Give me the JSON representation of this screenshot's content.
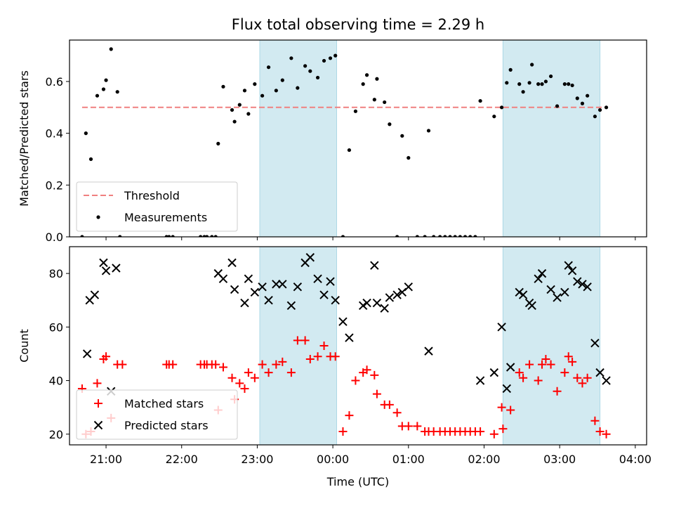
{
  "figure_title": "Flux total observing time = 2.29 h",
  "chart_data": [
    {
      "type": "scatter",
      "panel": "top",
      "ylabel": "Matched/Predicted stars",
      "xlabel": "",
      "xlim": [
        "20:31",
        "04:09"
      ],
      "ylim": [
        0,
        0.76
      ],
      "y_ticks": [
        0.0,
        0.2,
        0.4,
        0.6
      ],
      "y_tick_labels": [
        "0.0",
        "0.2",
        "0.4",
        "0.6"
      ],
      "shaded_intervals": [
        [
          "23:02",
          "00:03"
        ],
        [
          "02:15",
          "03:32"
        ]
      ],
      "shade_color": "#add8e6",
      "threshold": {
        "name": "Threshold",
        "value": 0.5,
        "color": "#f08080"
      },
      "legend": {
        "position": "lower-left",
        "entries": [
          "Threshold",
          "Measurements"
        ]
      },
      "series": [
        {
          "name": "Measurements",
          "marker": "dot",
          "color": "#000000",
          "points": [
            [
              "20:41",
              0.0
            ],
            [
              "20:44",
              0.4
            ],
            [
              "20:48",
              0.3
            ],
            [
              "20:53",
              0.545
            ],
            [
              "20:58",
              0.57
            ],
            [
              "21:00",
              0.605
            ],
            [
              "21:04",
              0.725
            ],
            [
              "21:09",
              0.56
            ],
            [
              "21:11",
              0.0
            ],
            [
              "21:48",
              0.0
            ],
            [
              "21:50",
              0.0
            ],
            [
              "21:53",
              0.0
            ],
            [
              "22:15",
              0.0
            ],
            [
              "22:18",
              0.0
            ],
            [
              "22:20",
              0.0
            ],
            [
              "22:24",
              0.0
            ],
            [
              "22:27",
              0.0
            ],
            [
              "22:29",
              0.36
            ],
            [
              "22:33",
              0.58
            ],
            [
              "22:40",
              0.49
            ],
            [
              "22:42",
              0.445
            ],
            [
              "22:46",
              0.51
            ],
            [
              "22:50",
              0.565
            ],
            [
              "22:53",
              0.475
            ],
            [
              "22:58",
              0.59
            ],
            [
              "23:04",
              0.545
            ],
            [
              "23:09",
              0.655
            ],
            [
              "23:15",
              0.565
            ],
            [
              "23:20",
              0.605
            ],
            [
              "23:27",
              0.69
            ],
            [
              "23:32",
              0.575
            ],
            [
              "23:38",
              0.66
            ],
            [
              "23:42",
              0.64
            ],
            [
              "23:48",
              0.615
            ],
            [
              "23:53",
              0.68
            ],
            [
              "23:58",
              0.69
            ],
            [
              "00:02",
              0.7
            ],
            [
              "00:08",
              0.0
            ],
            [
              "00:13",
              0.335
            ],
            [
              "00:18",
              0.485
            ],
            [
              "00:24",
              0.59
            ],
            [
              "00:27",
              0.625
            ],
            [
              "00:33",
              0.53
            ],
            [
              "00:35",
              0.61
            ],
            [
              "00:41",
              0.52
            ],
            [
              "00:45",
              0.435
            ],
            [
              "00:51",
              0.0
            ],
            [
              "00:55",
              0.39
            ],
            [
              "01:00",
              0.305
            ],
            [
              "01:07",
              0.0
            ],
            [
              "01:13",
              0.0
            ],
            [
              "01:16",
              0.41
            ],
            [
              "01:20",
              0.0
            ],
            [
              "01:25",
              0.0
            ],
            [
              "01:29",
              0.0
            ],
            [
              "01:33",
              0.0
            ],
            [
              "01:37",
              0.0
            ],
            [
              "01:41",
              0.0
            ],
            [
              "01:45",
              0.0
            ],
            [
              "01:49",
              0.0
            ],
            [
              "01:53",
              0.0
            ],
            [
              "01:57",
              0.525
            ],
            [
              "02:08",
              0.465
            ],
            [
              "02:14",
              0.5
            ],
            [
              "02:18",
              0.595
            ],
            [
              "02:21",
              0.645
            ],
            [
              "02:28",
              0.59
            ],
            [
              "02:31",
              0.56
            ],
            [
              "02:36",
              0.595
            ],
            [
              "02:38",
              0.665
            ],
            [
              "02:43",
              0.59
            ],
            [
              "02:46",
              0.59
            ],
            [
              "02:49",
              0.6
            ],
            [
              "02:53",
              0.62
            ],
            [
              "02:58",
              0.505
            ],
            [
              "03:04",
              0.59
            ],
            [
              "03:07",
              0.59
            ],
            [
              "03:10",
              0.585
            ],
            [
              "03:14",
              0.535
            ],
            [
              "03:18",
              0.515
            ],
            [
              "03:22",
              0.545
            ],
            [
              "03:28",
              0.465
            ],
            [
              "03:32",
              0.49
            ],
            [
              "03:37",
              0.5
            ]
          ]
        }
      ]
    },
    {
      "type": "scatter",
      "panel": "bottom",
      "ylabel": "Count",
      "xlabel": "Time (UTC)",
      "xlim": [
        "20:31",
        "04:09"
      ],
      "ylim": [
        16,
        90
      ],
      "x_ticks": [
        "21:00",
        "22:00",
        "23:00",
        "00:00",
        "01:00",
        "02:00",
        "03:00",
        "04:00"
      ],
      "y_ticks": [
        20,
        40,
        60,
        80
      ],
      "y_tick_labels": [
        "20",
        "40",
        "60",
        "80"
      ],
      "shaded_intervals": [
        [
          "23:02",
          "00:03"
        ],
        [
          "02:15",
          "03:32"
        ]
      ],
      "shade_color": "#add8e6",
      "legend": {
        "position": "lower-left",
        "entries": [
          "Matched stars",
          "Predicted stars"
        ]
      },
      "series": [
        {
          "name": "Matched stars",
          "marker": "plus",
          "color": "#ff0000",
          "points": [
            [
              "20:41",
              37
            ],
            [
              "20:44",
              20
            ],
            [
              "20:48",
              21
            ],
            [
              "20:53",
              39
            ],
            [
              "20:58",
              48
            ],
            [
              "21:00",
              49
            ],
            [
              "21:04",
              26
            ],
            [
              "21:09",
              46
            ],
            [
              "21:13",
              46
            ],
            [
              "21:48",
              46
            ],
            [
              "21:50",
              46
            ],
            [
              "21:53",
              46
            ],
            [
              "22:15",
              46
            ],
            [
              "22:18",
              46
            ],
            [
              "22:20",
              46
            ],
            [
              "22:24",
              46
            ],
            [
              "22:27",
              46
            ],
            [
              "22:29",
              29
            ],
            [
              "22:33",
              45
            ],
            [
              "22:40",
              41
            ],
            [
              "22:42",
              33
            ],
            [
              "22:46",
              39
            ],
            [
              "22:50",
              37
            ],
            [
              "22:53",
              43
            ],
            [
              "22:58",
              41
            ],
            [
              "23:04",
              46
            ],
            [
              "23:09",
              43
            ],
            [
              "23:15",
              46
            ],
            [
              "23:20",
              47
            ],
            [
              "23:27",
              43
            ],
            [
              "23:32",
              55
            ],
            [
              "23:38",
              55
            ],
            [
              "23:42",
              48
            ],
            [
              "23:48",
              49
            ],
            [
              "23:53",
              53
            ],
            [
              "23:58",
              49
            ],
            [
              "00:02",
              49
            ],
            [
              "00:08",
              21
            ],
            [
              "00:13",
              27
            ],
            [
              "00:18",
              40
            ],
            [
              "00:24",
              43
            ],
            [
              "00:27",
              44
            ],
            [
              "00:33",
              42
            ],
            [
              "00:35",
              35
            ],
            [
              "00:41",
              31
            ],
            [
              "00:45",
              31
            ],
            [
              "00:51",
              28
            ],
            [
              "00:55",
              23
            ],
            [
              "01:00",
              23
            ],
            [
              "01:07",
              23
            ],
            [
              "01:13",
              21
            ],
            [
              "01:16",
              21
            ],
            [
              "01:20",
              21
            ],
            [
              "01:25",
              21
            ],
            [
              "01:29",
              21
            ],
            [
              "01:33",
              21
            ],
            [
              "01:37",
              21
            ],
            [
              "01:41",
              21
            ],
            [
              "01:45",
              21
            ],
            [
              "01:49",
              21
            ],
            [
              "01:53",
              21
            ],
            [
              "01:57",
              21
            ],
            [
              "02:08",
              20
            ],
            [
              "02:14",
              30
            ],
            [
              "02:15",
              22
            ],
            [
              "02:21",
              29
            ],
            [
              "02:28",
              43
            ],
            [
              "02:31",
              41
            ],
            [
              "02:36",
              46
            ],
            [
              "02:43",
              40
            ],
            [
              "02:46",
              46
            ],
            [
              "02:49",
              48
            ],
            [
              "02:53",
              46
            ],
            [
              "02:58",
              36
            ],
            [
              "03:04",
              43
            ],
            [
              "03:07",
              49
            ],
            [
              "03:10",
              47
            ],
            [
              "03:14",
              41
            ],
            [
              "03:18",
              39
            ],
            [
              "03:22",
              41
            ],
            [
              "03:28",
              25
            ],
            [
              "03:32",
              21
            ],
            [
              "03:37",
              20
            ]
          ]
        },
        {
          "name": "Predicted stars",
          "marker": "x",
          "color": "#000000",
          "points": [
            [
              "20:47",
              70
            ],
            [
              "20:51",
              72
            ],
            [
              "20:45",
              50
            ],
            [
              "20:58",
              84
            ],
            [
              "21:00",
              81
            ],
            [
              "21:04",
              36
            ],
            [
              "21:08",
              82
            ],
            [
              "22:29",
              80
            ],
            [
              "22:33",
              78
            ],
            [
              "22:40",
              84
            ],
            [
              "22:42",
              74
            ],
            [
              "22:50",
              69
            ],
            [
              "22:53",
              78
            ],
            [
              "22:58",
              73
            ],
            [
              "23:04",
              75
            ],
            [
              "23:09",
              70
            ],
            [
              "23:15",
              76
            ],
            [
              "23:20",
              76
            ],
            [
              "23:27",
              68
            ],
            [
              "23:32",
              75
            ],
            [
              "23:38",
              84
            ],
            [
              "23:42",
              86
            ],
            [
              "23:48",
              78
            ],
            [
              "23:53",
              72
            ],
            [
              "23:58",
              77
            ],
            [
              "00:02",
              70
            ],
            [
              "00:08",
              62
            ],
            [
              "00:13",
              56
            ],
            [
              "00:24",
              68
            ],
            [
              "00:27",
              69
            ],
            [
              "00:33",
              83
            ],
            [
              "00:35",
              69
            ],
            [
              "00:41",
              67
            ],
            [
              "00:45",
              71
            ],
            [
              "00:51",
              72
            ],
            [
              "00:55",
              73
            ],
            [
              "01:00",
              75
            ],
            [
              "01:16",
              51
            ],
            [
              "01:57",
              40
            ],
            [
              "02:08",
              43
            ],
            [
              "02:14",
              60
            ],
            [
              "02:18",
              37
            ],
            [
              "02:21",
              45
            ],
            [
              "02:28",
              73
            ],
            [
              "02:31",
              72
            ],
            [
              "02:36",
              69
            ],
            [
              "02:38",
              68
            ],
            [
              "02:43",
              78
            ],
            [
              "02:46",
              80
            ],
            [
              "02:53",
              74
            ],
            [
              "02:58",
              71
            ],
            [
              "03:04",
              73
            ],
            [
              "03:07",
              83
            ],
            [
              "03:10",
              81
            ],
            [
              "03:14",
              77
            ],
            [
              "03:18",
              76
            ],
            [
              "03:22",
              75
            ],
            [
              "03:28",
              54
            ],
            [
              "03:32",
              43
            ],
            [
              "03:37",
              40
            ]
          ]
        }
      ]
    }
  ]
}
